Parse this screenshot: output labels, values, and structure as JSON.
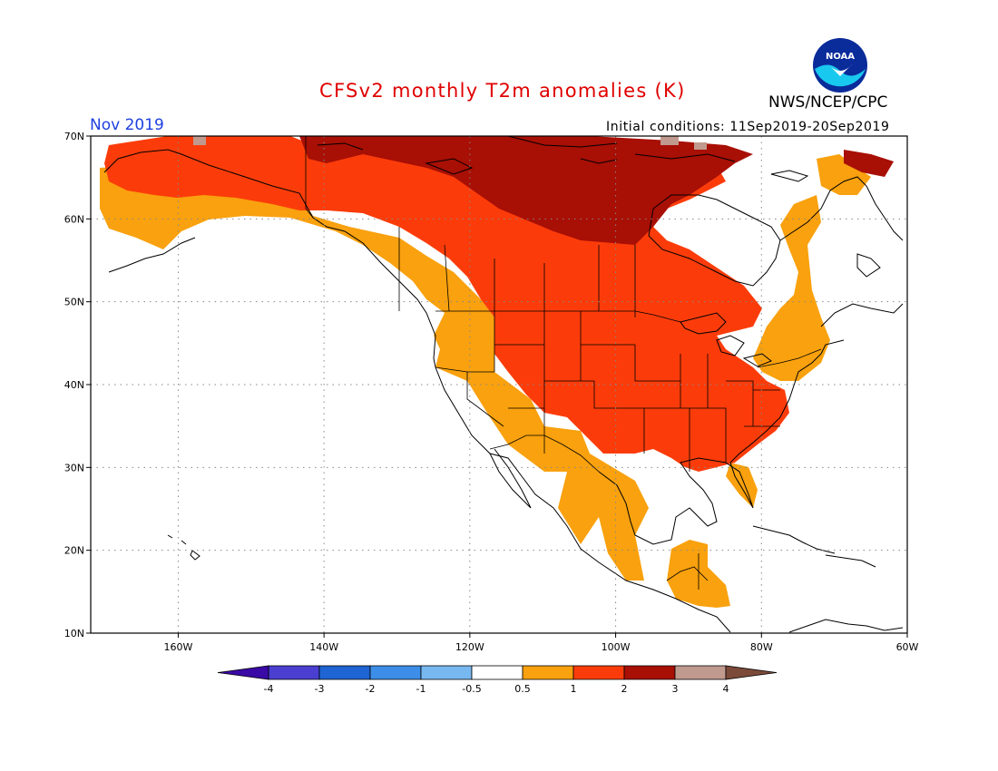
{
  "title": "CFSv2 monthly T2m anomalies (K)",
  "period": "Nov 2019",
  "initial_conditions": "Initial conditions: 11Sep2019-20Sep2019",
  "agency": "NWS/NCEP/CPC",
  "logo_text": "NOAA",
  "map": {
    "projection": "lat-lon",
    "lon_range": [
      -172,
      -60
    ],
    "lat_range": [
      10,
      70
    ],
    "lat_ticks": [
      "70N",
      "60N",
      "50N",
      "40N",
      "30N",
      "20N",
      "10N"
    ],
    "lon_ticks": [
      "160W",
      "140W",
      "120W",
      "100W",
      "80W",
      "60W"
    ],
    "grid_style": "dotted"
  },
  "colorbar": {
    "labels": [
      "-4",
      "-3",
      "-2",
      "-1",
      "-0.5",
      "0.5",
      "1",
      "2",
      "3",
      "4"
    ],
    "colors": [
      "#3a0aa6",
      "#4a3fd0",
      "#1e64d2",
      "#3c8ee8",
      "#78b8f0",
      "#ffffff",
      "#f9a10e",
      "#fb3c0a",
      "#a80f05",
      "#c09a8e",
      "#7c4a3a"
    ],
    "orientation": "horizontal",
    "extend": "both"
  },
  "anomaly_colors": {
    "0.5_to_1": "#f9a10e",
    "1_to_2": "#fb3c0a",
    "2_to_3": "#a80f05",
    "3_to_4": "#c09a8e"
  }
}
